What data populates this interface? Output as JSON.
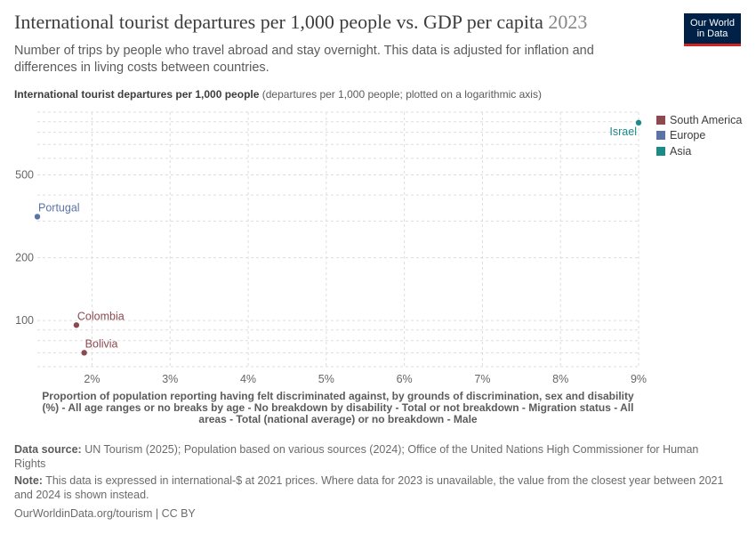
{
  "header": {
    "title": "International tourist departures per 1,000 people vs. GDP per capita",
    "year": "2023",
    "subtitle": "Number of trips by people who travel abroad and stay overnight. This data is adjusted for inflation and differences in living costs between countries.",
    "logo_line1": "Our World",
    "logo_line2": "in Data"
  },
  "chart_data": {
    "type": "scatter",
    "ylabel": "International tourist departures per 1,000 people",
    "ylabel_unit": "(departures per 1,000 people; plotted on a logarithmic axis)",
    "xlabel": "Proportion of population reporting having felt discriminated against, by grounds of discrimination, sex and disability (%) - All age ranges or no breaks by age - No breakdown by disability - Total or not breakdown - Migration status - All areas - Total (national average) or no breakdown - Male",
    "y_scale": "log",
    "y_ticks": [
      100,
      200,
      500
    ],
    "y_tick_labels": [
      "100",
      "200",
      "500"
    ],
    "x_ticks": [
      2,
      3,
      4,
      5,
      6,
      7,
      8,
      9
    ],
    "x_tick_labels": [
      "2%",
      "3%",
      "4%",
      "5%",
      "6%",
      "7%",
      "8%",
      "9%"
    ],
    "xlim": [
      1.3,
      9.0
    ],
    "ylim": [
      60,
      1000
    ],
    "grid": true,
    "legend_position": "right",
    "series": [
      {
        "name": "South America",
        "color": "#8c4a50"
      },
      {
        "name": "Europe",
        "color": "#5b74a8"
      },
      {
        "name": "Asia",
        "color": "#1d8a8a"
      }
    ],
    "points": [
      {
        "label": "Israel",
        "x": 9.0,
        "y": 890,
        "group": "Asia"
      },
      {
        "label": "Portugal",
        "x": 1.3,
        "y": 315,
        "group": "Europe"
      },
      {
        "label": "Colombia",
        "x": 1.8,
        "y": 95,
        "group": "South America"
      },
      {
        "label": "Bolivia",
        "x": 1.9,
        "y": 70,
        "group": "South America"
      }
    ]
  },
  "footer": {
    "source_label": "Data source:",
    "source_text": "UN Tourism (2025); Population based on various sources (2024); Office of the United Nations High Commissioner for Human Rights",
    "note_label": "Note:",
    "note_text": "This data is expressed in international-$ at 2021 prices. Where data for 2023 is unavailable, the value from the closest year between 2021 and 2024 is shown instead.",
    "credit": "OurWorldinData.org/tourism | CC BY"
  }
}
